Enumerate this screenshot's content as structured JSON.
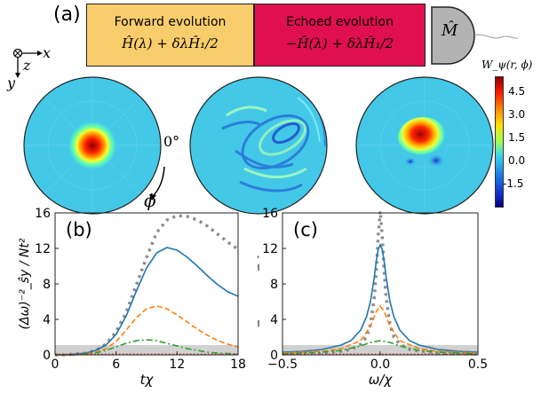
{
  "top": {
    "panel_label": "(a)",
    "forward_title": "Forward evolution",
    "forward_formula": "Ĥ(λ) + δλĤ₁/2",
    "echo_title": "Echoed evolution",
    "echo_formula": "−Ĥ(λ) + δλĤ₁/2",
    "measure_label": "M̂",
    "colors": {
      "forward_box": "#f9cd6b",
      "echo_box": "#e0104f",
      "detector": "#b3b3b3"
    }
  },
  "axes_triad": {
    "x": "x",
    "y": "y",
    "z": "z"
  },
  "phase_space": {
    "angle_label": "0°",
    "phi_label": "ϕ",
    "colorbar_title": "W_ψ(r, ϕ)",
    "colorbar_ticks": [
      "4.5",
      "3.0",
      "1.5",
      "0.0",
      "-1.5"
    ]
  },
  "chart_data": [
    {
      "type": "line",
      "panel_label": "(b)",
      "xlabel": "tχ",
      "ylabel": "(Δω)⁻²_ŝy / Nt²",
      "xlim": [
        0,
        18
      ],
      "ylim": [
        0,
        16
      ],
      "xticks": [
        "0",
        "6",
        "12",
        "18"
      ],
      "yticks": [
        "0",
        "4",
        "8",
        "12",
        "16"
      ],
      "grid": false,
      "band": [
        0,
        1.1
      ],
      "series": [
        {
          "style": "dotted-gray",
          "color": "#8c8c8c",
          "x": [
            0,
            1,
            2,
            3,
            4,
            5,
            6,
            7,
            8,
            9,
            10,
            11,
            12,
            13,
            14,
            15,
            16,
            17,
            18
          ],
          "y": [
            0,
            0,
            0.1,
            0.2,
            0.5,
            1.2,
            2.6,
            4.8,
            7.9,
            11.0,
            13.8,
            15.2,
            15.7,
            15.6,
            15.2,
            14.5,
            13.6,
            12.7,
            11.9
          ]
        },
        {
          "style": "solid",
          "color": "#1f77b4",
          "x": [
            0,
            1,
            2,
            3,
            4,
            5,
            6,
            7,
            8,
            9,
            10,
            11,
            12,
            13,
            14,
            15,
            16,
            17,
            18
          ],
          "y": [
            0,
            0,
            0.1,
            0.2,
            0.5,
            1.1,
            2.3,
            4.4,
            7.2,
            9.8,
            11.5,
            12.1,
            11.8,
            11.0,
            10.0,
            8.9,
            7.9,
            7.1,
            6.6
          ]
        },
        {
          "style": "dashed",
          "color": "#ff7f0e",
          "x": [
            0,
            1,
            2,
            3,
            4,
            5,
            6,
            7,
            8,
            9,
            10,
            11,
            12,
            13,
            14,
            15,
            16,
            17,
            18
          ],
          "y": [
            0,
            0,
            0,
            0.1,
            0.3,
            0.7,
            1.5,
            2.8,
            4.2,
            5.2,
            5.5,
            5.2,
            4.5,
            3.7,
            2.9,
            2.2,
            1.6,
            1.2,
            0.9
          ]
        },
        {
          "style": "dashdot",
          "color": "#2ca02c",
          "x": [
            0,
            1,
            2,
            3,
            4,
            5,
            6,
            7,
            8,
            9,
            10,
            11,
            12,
            13,
            14,
            15,
            16,
            17,
            18
          ],
          "y": [
            0,
            0,
            0,
            0.1,
            0.2,
            0.5,
            0.9,
            1.3,
            1.6,
            1.7,
            1.6,
            1.3,
            1.0,
            0.7,
            0.5,
            0.3,
            0.2,
            0.15,
            0.1
          ]
        },
        {
          "style": "dotted-red",
          "color": "#d62728",
          "x": [
            0,
            18
          ],
          "y": [
            0.08,
            0.08
          ]
        }
      ]
    },
    {
      "type": "line",
      "panel_label": "(c)",
      "xlabel": "ω/χ",
      "ylabel": "max_t[(Δω)⁻²_ŝy / Nt²]",
      "xlim": [
        -0.5,
        0.5
      ],
      "ylim": [
        0,
        16
      ],
      "xticks": [
        "−0.5",
        "0.0",
        "0.5"
      ],
      "yticks": [
        "0",
        "4",
        "8",
        "12",
        "16"
      ],
      "grid": false,
      "band": [
        0,
        1.1
      ],
      "series": [
        {
          "style": "dotted-gray",
          "color": "#8c8c8c",
          "x": [
            -0.5,
            -0.4,
            -0.3,
            -0.2,
            -0.15,
            -0.1,
            -0.07,
            -0.05,
            -0.03,
            -0.02,
            -0.01,
            0,
            0.01,
            0.02,
            0.03,
            0.05,
            0.07,
            0.1,
            0.15,
            0.2,
            0.3,
            0.4,
            0.5
          ],
          "y": [
            0.1,
            0.15,
            0.2,
            0.4,
            0.6,
            1.2,
            2.0,
            3.4,
            6.5,
            9.5,
            13.5,
            16.2,
            13.5,
            9.5,
            6.5,
            3.4,
            2.0,
            1.2,
            0.6,
            0.4,
            0.2,
            0.15,
            0.1
          ]
        },
        {
          "style": "solid",
          "color": "#1f77b4",
          "x": [
            -0.5,
            -0.4,
            -0.3,
            -0.2,
            -0.15,
            -0.1,
            -0.07,
            -0.05,
            -0.03,
            -0.02,
            -0.01,
            0,
            0.01,
            0.02,
            0.03,
            0.05,
            0.07,
            0.1,
            0.15,
            0.2,
            0.3,
            0.4,
            0.5
          ],
          "y": [
            0.3,
            0.4,
            0.6,
            1.1,
            1.6,
            2.8,
            4.3,
            6.0,
            8.8,
            10.6,
            11.9,
            12.4,
            11.9,
            10.6,
            8.8,
            6.0,
            4.3,
            2.8,
            1.6,
            1.1,
            0.6,
            0.4,
            0.3
          ]
        },
        {
          "style": "dashed",
          "color": "#ff7f0e",
          "x": [
            -0.5,
            -0.3,
            -0.2,
            -0.1,
            -0.05,
            -0.02,
            0,
            0.02,
            0.05,
            0.1,
            0.2,
            0.3,
            0.5
          ],
          "y": [
            0.2,
            0.4,
            0.7,
            1.6,
            3.2,
            4.9,
            5.5,
            4.9,
            3.2,
            1.6,
            0.7,
            0.4,
            0.2
          ]
        },
        {
          "style": "dashdot",
          "color": "#2ca02c",
          "x": [
            -0.5,
            -0.3,
            -0.2,
            -0.1,
            -0.05,
            0,
            0.05,
            0.1,
            0.2,
            0.3,
            0.5
          ],
          "y": [
            0.1,
            0.3,
            0.5,
            1.0,
            1.4,
            1.6,
            1.4,
            1.0,
            0.5,
            0.3,
            0.1
          ]
        },
        {
          "style": "dotted-red",
          "color": "#d62728",
          "x": [
            -0.5,
            0.5
          ],
          "y": [
            0.08,
            0.08
          ]
        }
      ]
    }
  ]
}
